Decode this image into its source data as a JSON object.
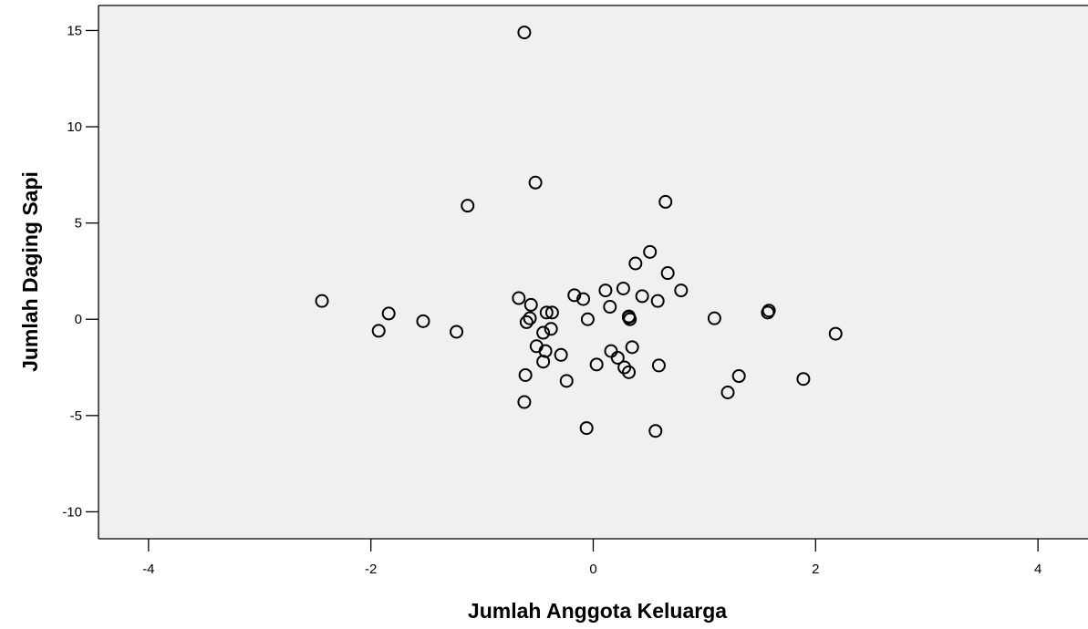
{
  "chart_data": {
    "type": "scatter",
    "title": "",
    "xlabel": "Jumlah Anggota Keluarga",
    "ylabel": "Jumlah Daging Sapi",
    "xlim": [
      -4.45,
      4.45
    ],
    "ylim": [
      -11.4,
      16.3
    ],
    "xticks": [
      -4,
      -2,
      0,
      2,
      4
    ],
    "yticks": [
      -10,
      -5,
      0,
      5,
      10,
      15
    ],
    "xtick_labels": [
      "-4",
      "-2",
      "0",
      "2",
      "4"
    ],
    "ytick_labels": [
      "-10",
      "-5",
      "0",
      "5",
      "10",
      "15"
    ],
    "grid": false,
    "plot_background": "#f0f0f0",
    "marker": "open-circle",
    "points": [
      {
        "x": -0.62,
        "y": 14.9
      },
      {
        "x": -0.52,
        "y": 7.1
      },
      {
        "x": -1.13,
        "y": 5.9
      },
      {
        "x": 0.65,
        "y": 6.1
      },
      {
        "x": 0.51,
        "y": 3.5
      },
      {
        "x": 0.38,
        "y": 2.9
      },
      {
        "x": 0.67,
        "y": 2.4
      },
      {
        "x": 0.79,
        "y": 1.5
      },
      {
        "x": 0.27,
        "y": 1.6
      },
      {
        "x": 0.11,
        "y": 1.5
      },
      {
        "x": 0.44,
        "y": 1.2
      },
      {
        "x": 0.58,
        "y": 0.95
      },
      {
        "x": -0.17,
        "y": 1.25
      },
      {
        "x": -0.09,
        "y": 1.05
      },
      {
        "x": 0.15,
        "y": 0.65
      },
      {
        "x": -0.67,
        "y": 1.1
      },
      {
        "x": -0.56,
        "y": 0.75
      },
      {
        "x": -2.44,
        "y": 0.95
      },
      {
        "x": -1.84,
        "y": 0.3
      },
      {
        "x": -1.93,
        "y": -0.6
      },
      {
        "x": -1.53,
        "y": -0.1
      },
      {
        "x": -1.23,
        "y": -0.65
      },
      {
        "x": -0.42,
        "y": 0.35
      },
      {
        "x": -0.37,
        "y": 0.35
      },
      {
        "x": -0.57,
        "y": 0.05
      },
      {
        "x": -0.6,
        "y": -0.15
      },
      {
        "x": -0.05,
        "y": 0.0
      },
      {
        "x": 0.32,
        "y": 0.15
      },
      {
        "x": 0.33,
        "y": 0.0
      },
      {
        "x": 0.32,
        "y": 0.1
      },
      {
        "x": -0.38,
        "y": -0.5
      },
      {
        "x": -0.45,
        "y": -0.7
      },
      {
        "x": -0.51,
        "y": -1.4
      },
      {
        "x": -0.43,
        "y": -1.65
      },
      {
        "x": -0.29,
        "y": -1.85
      },
      {
        "x": -0.45,
        "y": -2.2
      },
      {
        "x": 0.16,
        "y": -1.65
      },
      {
        "x": 0.22,
        "y": -2.0
      },
      {
        "x": 0.35,
        "y": -1.45
      },
      {
        "x": 0.03,
        "y": -2.35
      },
      {
        "x": 0.28,
        "y": -2.5
      },
      {
        "x": 0.32,
        "y": -2.75
      },
      {
        "x": 0.59,
        "y": -2.4
      },
      {
        "x": -0.61,
        "y": -2.9
      },
      {
        "x": -0.24,
        "y": -3.2
      },
      {
        "x": -0.62,
        "y": -4.3
      },
      {
        "x": -0.06,
        "y": -5.65
      },
      {
        "x": 0.56,
        "y": -5.8
      },
      {
        "x": 1.09,
        "y": 0.05
      },
      {
        "x": 1.57,
        "y": 0.35
      },
      {
        "x": 1.58,
        "y": 0.45
      },
      {
        "x": 2.18,
        "y": -0.75
      },
      {
        "x": 1.21,
        "y": -3.8
      },
      {
        "x": 1.31,
        "y": -2.95
      },
      {
        "x": 1.89,
        "y": -3.1
      }
    ]
  }
}
